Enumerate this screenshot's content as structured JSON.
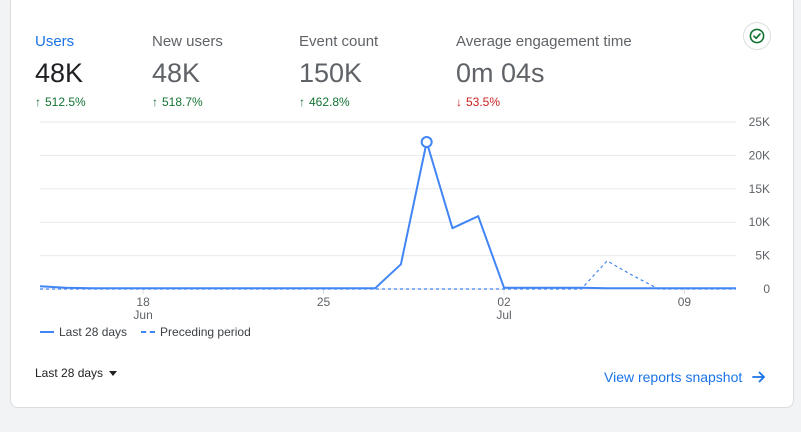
{
  "metrics": [
    {
      "label": "Users",
      "value": "48K",
      "delta": "512.5%",
      "direction": "up",
      "active": true
    },
    {
      "label": "New users",
      "value": "48K",
      "delta": "518.7%",
      "direction": "up"
    },
    {
      "label": "Event count",
      "value": "150K",
      "delta": "462.8%",
      "direction": "up"
    },
    {
      "label": "Average engagement time",
      "value": "0m 04s",
      "delta": "53.5%",
      "direction": "down"
    }
  ],
  "colors": {
    "accent": "#1a73e8",
    "up": "#137333",
    "down": "#c5221f",
    "series": "#4285f4"
  },
  "legend": {
    "current": "Last 28 days",
    "previous": "Preceding period"
  },
  "date_range": {
    "label": "Last 28 days"
  },
  "snapshot_link": {
    "label": "View reports snapshot"
  },
  "chart_data": {
    "type": "line",
    "y_ticks": [
      "25K",
      "20K",
      "15K",
      "10K",
      "5K",
      "0"
    ],
    "ylim": [
      0,
      25000
    ],
    "x_ticks": [
      {
        "day": 4,
        "label": "18",
        "sub": "Jun"
      },
      {
        "day": 11,
        "label": "25",
        "sub": ""
      },
      {
        "day": 18,
        "label": "02",
        "sub": "Jul"
      },
      {
        "day": 25,
        "label": "09",
        "sub": ""
      }
    ],
    "series": [
      {
        "name": "Last 28 days",
        "style": "solid",
        "values": [
          400,
          200,
          100,
          100,
          100,
          100,
          100,
          100,
          100,
          100,
          100,
          100,
          100,
          100,
          3700,
          22000,
          9100,
          10900,
          200,
          200,
          200,
          200,
          100,
          100,
          100,
          100,
          100,
          100
        ],
        "highlight_index": 15
      },
      {
        "name": "Preceding period",
        "style": "dashed",
        "values": [
          0,
          0,
          0,
          0,
          0,
          0,
          0,
          0,
          0,
          0,
          0,
          0,
          0,
          0,
          0,
          0,
          0,
          0,
          0,
          0,
          0,
          0,
          4200,
          2000,
          0,
          0,
          0,
          0
        ]
      }
    ]
  }
}
